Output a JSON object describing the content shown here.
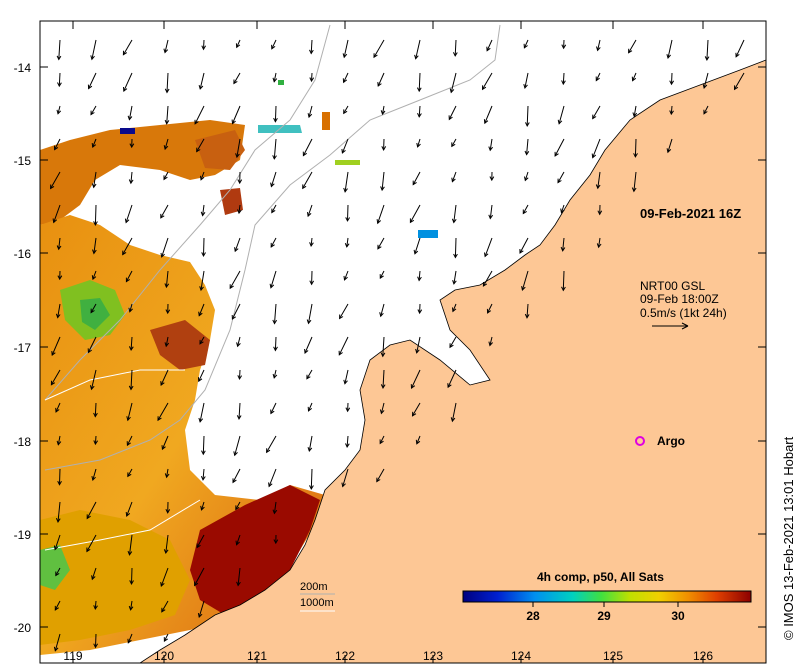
{
  "map": {
    "lon_ticks": [
      "119",
      "120",
      "121",
      "122",
      "123",
      "124",
      "125",
      "126"
    ],
    "lat_ticks": [
      "-14",
      "-15",
      "-16",
      "-17",
      "-18",
      "-19",
      "-20"
    ],
    "timestamp": "09-Feb-2021 16Z",
    "current_legend": {
      "line1": "NRT00 GSL",
      "line2": "09-Feb 18:00Z",
      "line3": "0.5m/s (1kt 24h)"
    },
    "argo_label": "Argo",
    "depth_contours": {
      "c200": "200m",
      "c1000": "1000m"
    },
    "colorbar": {
      "title": "4h comp, p50, All Sats",
      "ticks": [
        "28",
        "29",
        "30"
      ]
    },
    "credit": "© IMOS 13-Feb-2021 13:01 Hobart",
    "colors": {
      "land": "#fdc795",
      "frame": "#000000",
      "argo": "#e000e0",
      "sst_cold": "#0a0a8c",
      "sst_warm": "#8c0a00"
    }
  }
}
